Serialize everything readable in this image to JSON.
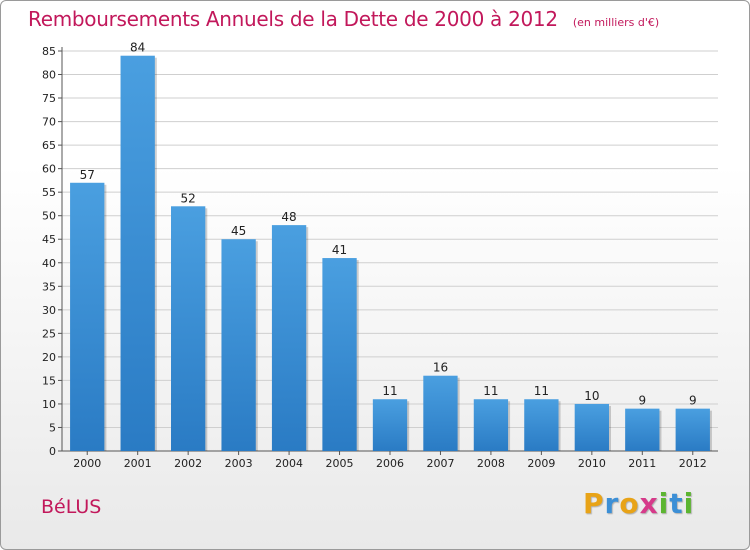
{
  "chart_data": {
    "type": "bar",
    "title": "Remboursements Annuels de la Dette de 2000 à 2012",
    "unit": "(en milliers d'€)",
    "xlabel": "",
    "ylabel": "",
    "categories": [
      "2000",
      "2001",
      "2002",
      "2003",
      "2004",
      "2005",
      "2006",
      "2007",
      "2008",
      "2009",
      "2010",
      "2011",
      "2012"
    ],
    "values": [
      57,
      84,
      52,
      45,
      48,
      41,
      11,
      16,
      11,
      11,
      10,
      9,
      9
    ],
    "ylim": [
      0,
      85
    ],
    "yticks": [
      0,
      5,
      10,
      15,
      20,
      25,
      30,
      35,
      40,
      45,
      50,
      55,
      60,
      65,
      70,
      75,
      80,
      85
    ],
    "grid": true,
    "legend": "none",
    "bar_color": "#4a9fe0",
    "bar_color_dark": "#2a7bc4"
  },
  "commune": "BéLUS",
  "logo": {
    "letters": [
      "P",
      "r",
      "o",
      "x",
      "i",
      "t",
      "i"
    ],
    "colors": [
      "#e8a317",
      "#3c8fd6",
      "#e8a317",
      "#d63a8a",
      "#5cb531",
      "#3c8fd6",
      "#5cb531"
    ]
  },
  "colors": {
    "title": "#c2185b",
    "grid": "#cfcfcf"
  }
}
